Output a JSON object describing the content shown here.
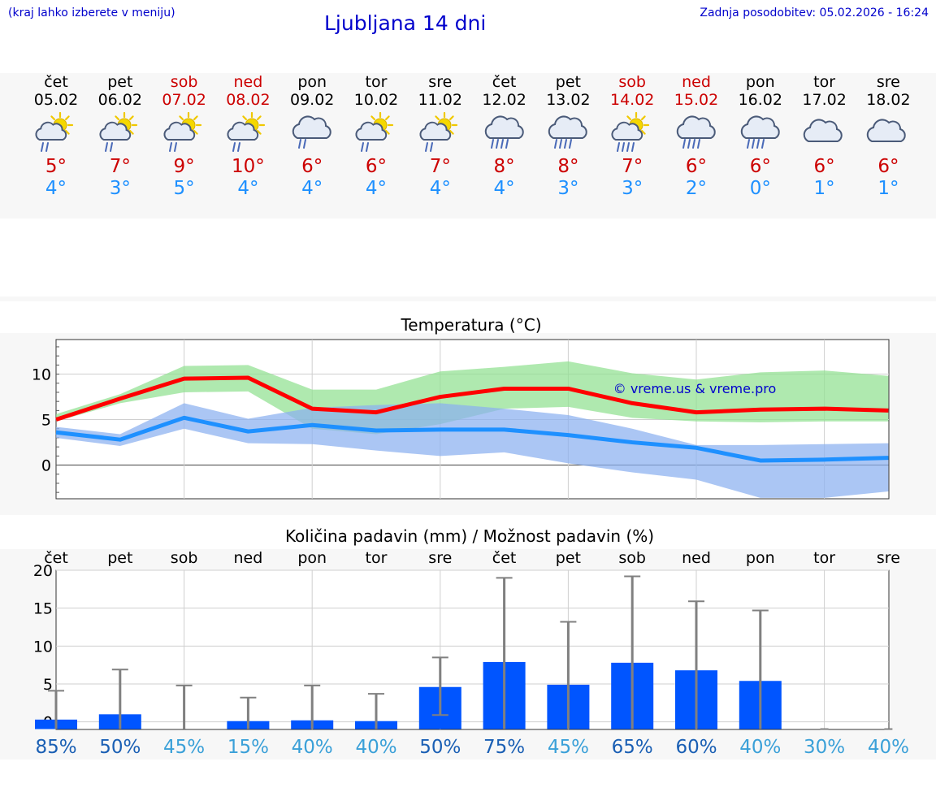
{
  "header": {
    "left_note": "(kraj lahko izberete v meniju)",
    "title": "Ljubljana 14 dni",
    "updated": "Zadnja posodobitev: 05.02.2026 - 16:24"
  },
  "days": [
    {
      "name": "čet",
      "date": "05.02",
      "weekend": false,
      "icon": "sun-cloud-rain-icon",
      "tmax": "5°",
      "tmin": "4°"
    },
    {
      "name": "pet",
      "date": "06.02",
      "weekend": false,
      "icon": "sun-cloud-rain-icon",
      "tmax": "7°",
      "tmin": "3°"
    },
    {
      "name": "sob",
      "date": "07.02",
      "weekend": true,
      "icon": "sun-cloud-rain-icon",
      "tmax": "9°",
      "tmin": "5°"
    },
    {
      "name": "ned",
      "date": "08.02",
      "weekend": true,
      "icon": "sun-cloud-rain-icon",
      "tmax": "10°",
      "tmin": "4°"
    },
    {
      "name": "pon",
      "date": "09.02",
      "weekend": false,
      "icon": "cloud-rain-icon",
      "tmax": "6°",
      "tmin": "4°"
    },
    {
      "name": "tor",
      "date": "10.02",
      "weekend": false,
      "icon": "sun-cloud-rain-icon",
      "tmax": "6°",
      "tmin": "4°"
    },
    {
      "name": "sre",
      "date": "11.02",
      "weekend": false,
      "icon": "sun-cloud-rain-icon",
      "tmax": "7°",
      "tmin": "4°"
    },
    {
      "name": "čet",
      "date": "12.02",
      "weekend": false,
      "icon": "cloud-heavy-rain-icon",
      "tmax": "8°",
      "tmin": "4°"
    },
    {
      "name": "pet",
      "date": "13.02",
      "weekend": false,
      "icon": "cloud-heavy-rain-icon",
      "tmax": "8°",
      "tmin": "3°"
    },
    {
      "name": "sob",
      "date": "14.02",
      "weekend": true,
      "icon": "sun-cloud-heavy-rain-icon",
      "tmax": "7°",
      "tmin": "3°"
    },
    {
      "name": "ned",
      "date": "15.02",
      "weekend": true,
      "icon": "cloud-heavy-rain-icon",
      "tmax": "6°",
      "tmin": "2°"
    },
    {
      "name": "pon",
      "date": "16.02",
      "weekend": false,
      "icon": "cloud-heavy-rain-icon",
      "tmax": "6°",
      "tmin": "0°"
    },
    {
      "name": "tor",
      "date": "17.02",
      "weekend": false,
      "icon": "cloud-icon",
      "tmax": "6°",
      "tmin": "1°"
    },
    {
      "name": "sre",
      "date": "18.02",
      "weekend": false,
      "icon": "cloud-icon",
      "tmax": "6°",
      "tmin": "1°"
    }
  ],
  "colors": {
    "max_line": "#ff0000",
    "min_line": "#1e90ff",
    "max_band": "#90e090",
    "min_band": "#8ab0f0",
    "overlap_band": "#70c0a0",
    "bar": "#0055ff",
    "whisker": "#808080",
    "pct_high": "#1a5fb4",
    "pct_low": "#3aa0d8"
  },
  "chart_data": [
    {
      "type": "line",
      "title": "Temperatura (°C)",
      "watermark": "© vreme.us & vreme.pro",
      "x": [
        "čet",
        "pet",
        "sob",
        "ned",
        "pon",
        "tor",
        "sre",
        "čet",
        "pet",
        "sob",
        "ned",
        "pon",
        "tor",
        "sre"
      ],
      "ylim": [
        -3.7,
        13.8
      ],
      "yticks": [
        0,
        5,
        10
      ],
      "series": [
        {
          "name": "max",
          "values": [
            5.0,
            7.3,
            9.5,
            9.6,
            6.2,
            5.8,
            7.5,
            8.4,
            8.4,
            6.8,
            5.8,
            6.1,
            6.2,
            6.0
          ],
          "band_low": [
            4.8,
            6.8,
            8.0,
            8.1,
            4.0,
            3.4,
            4.5,
            6.2,
            6.4,
            5.2,
            4.8,
            4.7,
            4.8,
            4.8
          ],
          "band_high": [
            5.6,
            7.8,
            10.9,
            11.0,
            8.3,
            8.3,
            10.3,
            10.8,
            11.4,
            10.1,
            9.4,
            10.2,
            10.4,
            9.8
          ]
        },
        {
          "name": "min",
          "values": [
            3.6,
            2.8,
            5.2,
            3.7,
            4.4,
            3.8,
            3.9,
            3.9,
            3.3,
            2.5,
            1.9,
            0.5,
            0.6,
            0.8
          ],
          "band_low": [
            3.0,
            2.1,
            4.0,
            2.4,
            2.3,
            1.6,
            1.0,
            1.4,
            0.2,
            -0.8,
            -1.6,
            -3.6,
            -3.6,
            -2.9
          ],
          "band_high": [
            4.2,
            3.4,
            6.8,
            5.1,
            6.3,
            6.6,
            6.8,
            6.2,
            5.5,
            4.0,
            2.2,
            2.2,
            2.3,
            2.4
          ]
        }
      ]
    },
    {
      "type": "bar",
      "title": "Količina padavin (mm) / Možnost padavin (%)",
      "categories": [
        "čet",
        "pet",
        "sob",
        "ned",
        "pon",
        "tor",
        "sre",
        "čet",
        "pet",
        "sob",
        "ned",
        "pon",
        "tor",
        "sre"
      ],
      "ylim": [
        -1,
        20
      ],
      "yticks": [
        0,
        5,
        10,
        15,
        20
      ],
      "values": [
        0.3,
        1.0,
        0.0,
        0.1,
        0.2,
        0.1,
        4.6,
        7.9,
        4.9,
        7.8,
        6.8,
        5.4,
        0.0,
        0.0
      ],
      "err_low": [
        0,
        0,
        0,
        0,
        0,
        0,
        0.9,
        0,
        0,
        0,
        0,
        0,
        0,
        0
      ],
      "err_high": [
        4.1,
        6.9,
        4.8,
        3.2,
        4.8,
        3.7,
        8.5,
        19.0,
        13.2,
        19.2,
        15.9,
        14.7,
        0.0,
        0.0
      ],
      "probability": [
        "85%",
        "50%",
        "45%",
        "15%",
        "40%",
        "40%",
        "50%",
        "75%",
        "45%",
        "65%",
        "60%",
        "40%",
        "30%",
        "40%"
      ]
    }
  ]
}
